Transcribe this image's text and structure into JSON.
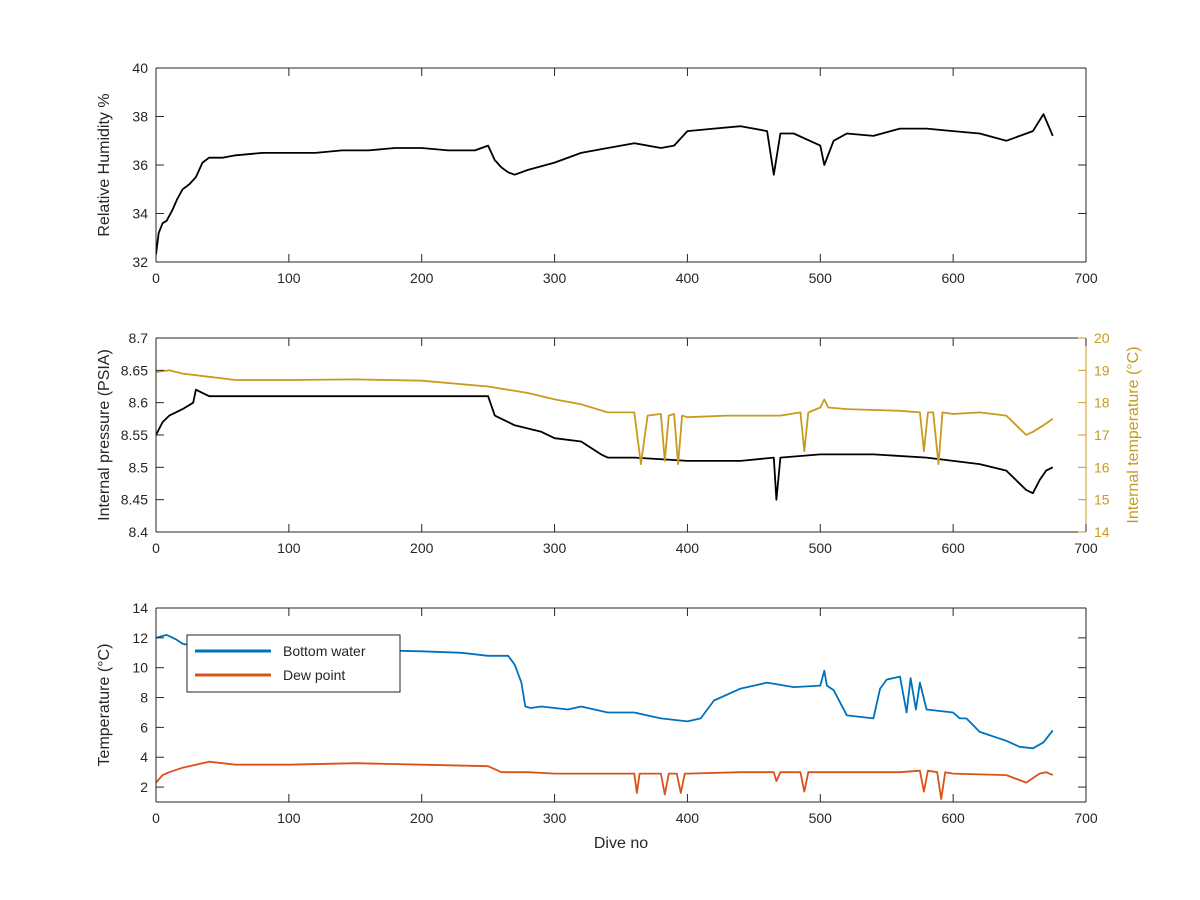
{
  "figure": {
    "background": "#ffffff",
    "axis_color": "#262626"
  },
  "chart_data": [
    {
      "type": "line",
      "xlabel": "",
      "ylabel": "Relative Humidity %",
      "xlim": [
        0,
        700
      ],
      "ylim": [
        32,
        40
      ],
      "xticks": [
        "0",
        "100",
        "200",
        "300",
        "400",
        "500",
        "600",
        "700"
      ],
      "yticks": [
        "32",
        "34",
        "36",
        "38",
        "40"
      ],
      "grid": false,
      "series": [
        {
          "name": "",
          "color": "#000000",
          "x": [
            0,
            2,
            5,
            8,
            12,
            16,
            20,
            25,
            30,
            35,
            40,
            50,
            60,
            80,
            100,
            120,
            140,
            160,
            180,
            200,
            220,
            240,
            250,
            255,
            260,
            265,
            270,
            280,
            300,
            320,
            340,
            360,
            380,
            390,
            400,
            420,
            440,
            460,
            465,
            470,
            480,
            500,
            503,
            510,
            520,
            540,
            560,
            580,
            600,
            620,
            640,
            660,
            668,
            675
          ],
          "y": [
            32.3,
            33.2,
            33.6,
            33.7,
            34.1,
            34.6,
            35.0,
            35.2,
            35.5,
            36.1,
            36.3,
            36.3,
            36.4,
            36.5,
            36.5,
            36.5,
            36.6,
            36.6,
            36.7,
            36.7,
            36.6,
            36.6,
            36.8,
            36.2,
            35.9,
            35.7,
            35.6,
            35.8,
            36.1,
            36.5,
            36.7,
            36.9,
            36.7,
            36.8,
            37.4,
            37.5,
            37.6,
            37.4,
            35.6,
            37.3,
            37.3,
            36.8,
            36.0,
            37.0,
            37.3,
            37.2,
            37.5,
            37.5,
            37.4,
            37.3,
            37.0,
            37.4,
            38.1,
            37.2
          ]
        }
      ]
    },
    {
      "type": "line",
      "xlabel": "",
      "ylabel": "Internal pressure (PSIA)",
      "y2label": "Internal temperature (°C)",
      "xlim": [
        0,
        700
      ],
      "ylim": [
        8.4,
        8.7
      ],
      "y2lim": [
        14,
        20
      ],
      "xticks": [
        "0",
        "100",
        "200",
        "300",
        "400",
        "500",
        "600",
        "700"
      ],
      "yticks": [
        "8.4",
        "8.45",
        "8.5",
        "8.55",
        "8.6",
        "8.65",
        "8.7"
      ],
      "y2ticks": [
        "14",
        "15",
        "16",
        "17",
        "18",
        "19",
        "20"
      ],
      "grid": false,
      "series": [
        {
          "name": "",
          "color": "#000000",
          "axis": "left",
          "x": [
            0,
            5,
            10,
            20,
            28,
            30,
            40,
            60,
            100,
            150,
            200,
            240,
            250,
            255,
            270,
            290,
            300,
            320,
            335,
            340,
            360,
            400,
            440,
            465,
            467,
            470,
            500,
            540,
            580,
            600,
            620,
            640,
            655,
            660,
            665,
            670,
            675
          ],
          "y": [
            8.55,
            8.57,
            8.58,
            8.59,
            8.6,
            8.62,
            8.61,
            8.61,
            8.61,
            8.61,
            8.61,
            8.61,
            8.61,
            8.58,
            8.565,
            8.555,
            8.545,
            8.54,
            8.52,
            8.515,
            8.515,
            8.51,
            8.51,
            8.515,
            8.45,
            8.515,
            8.52,
            8.52,
            8.515,
            8.51,
            8.505,
            8.495,
            8.465,
            8.46,
            8.48,
            8.495,
            8.5
          ]
        },
        {
          "name": "",
          "color": "#C89B1E",
          "axis": "right",
          "x": [
            0,
            10,
            20,
            40,
            60,
            100,
            150,
            200,
            250,
            280,
            300,
            320,
            340,
            355,
            360,
            365,
            370,
            380,
            383,
            386,
            390,
            393,
            396,
            400,
            430,
            470,
            485,
            488,
            491,
            500,
            503,
            506,
            520,
            560,
            575,
            578,
            581,
            585,
            589,
            592,
            600,
            620,
            640,
            655,
            660,
            668,
            675
          ],
          "y": [
            18.95,
            19.0,
            18.9,
            18.8,
            18.7,
            18.7,
            18.72,
            18.68,
            18.5,
            18.3,
            18.1,
            17.95,
            17.7,
            17.7,
            17.7,
            16.1,
            17.6,
            17.65,
            16.2,
            17.6,
            17.65,
            16.1,
            17.6,
            17.55,
            17.6,
            17.6,
            17.7,
            16.5,
            17.7,
            17.85,
            18.1,
            17.85,
            17.8,
            17.75,
            17.7,
            16.5,
            17.7,
            17.7,
            16.1,
            17.7,
            17.65,
            17.7,
            17.6,
            17.0,
            17.1,
            17.3,
            17.5
          ]
        }
      ]
    },
    {
      "type": "line",
      "xlabel": "Dive no",
      "ylabel": "Temperature (°C)",
      "xlim": [
        0,
        700
      ],
      "ylim": [
        1,
        14
      ],
      "xticks": [
        "0",
        "100",
        "200",
        "300",
        "400",
        "500",
        "600",
        "700"
      ],
      "yticks": [
        "2",
        "4",
        "6",
        "8",
        "10",
        "12",
        "14"
      ],
      "grid": false,
      "legend": {
        "position": "top-left",
        "entries": [
          "Bottom water",
          "Dew point"
        ]
      },
      "series": [
        {
          "name": "Bottom water",
          "color": "#0072BD",
          "x": [
            0,
            8,
            15,
            20,
            30,
            50,
            100,
            150,
            200,
            230,
            250,
            265,
            270,
            275,
            278,
            282,
            290,
            300,
            310,
            320,
            340,
            360,
            380,
            390,
            400,
            410,
            420,
            440,
            460,
            480,
            500,
            503,
            505,
            510,
            520,
            540,
            545,
            550,
            560,
            565,
            568,
            572,
            575,
            580,
            600,
            605,
            610,
            620,
            640,
            650,
            660,
            668,
            675
          ],
          "y": [
            12.0,
            12.2,
            11.9,
            11.6,
            11.4,
            11.3,
            11.3,
            11.2,
            11.1,
            11.0,
            10.8,
            10.8,
            10.2,
            9.0,
            7.4,
            7.3,
            7.4,
            7.3,
            7.2,
            7.4,
            7.0,
            7.0,
            6.6,
            6.5,
            6.4,
            6.6,
            7.8,
            8.6,
            9.0,
            8.7,
            8.8,
            9.8,
            8.8,
            8.5,
            6.8,
            6.6,
            8.6,
            9.2,
            9.4,
            7.0,
            9.3,
            7.2,
            9.0,
            7.2,
            7.0,
            6.6,
            6.6,
            5.7,
            5.1,
            4.7,
            4.6,
            5.0,
            5.8
          ]
        },
        {
          "name": "Dew point",
          "color": "#D95319",
          "x": [
            0,
            5,
            10,
            20,
            30,
            40,
            60,
            100,
            150,
            200,
            250,
            260,
            280,
            300,
            340,
            360,
            362,
            364,
            380,
            383,
            386,
            392,
            395,
            398,
            400,
            440,
            465,
            467,
            470,
            485,
            488,
            491,
            500,
            560,
            575,
            578,
            581,
            588,
            591,
            594,
            600,
            640,
            655,
            660,
            665,
            670,
            675
          ],
          "y": [
            2.3,
            2.8,
            3.0,
            3.3,
            3.5,
            3.7,
            3.5,
            3.5,
            3.6,
            3.5,
            3.4,
            3.0,
            3.0,
            2.9,
            2.9,
            2.9,
            1.6,
            2.9,
            2.9,
            1.5,
            2.9,
            2.9,
            1.6,
            2.9,
            2.9,
            3.0,
            3.0,
            2.4,
            3.0,
            3.0,
            1.7,
            3.0,
            3.0,
            3.0,
            3.1,
            1.7,
            3.1,
            3.0,
            1.2,
            3.0,
            2.9,
            2.8,
            2.3,
            2.6,
            2.9,
            3.0,
            2.8
          ]
        }
      ]
    }
  ]
}
